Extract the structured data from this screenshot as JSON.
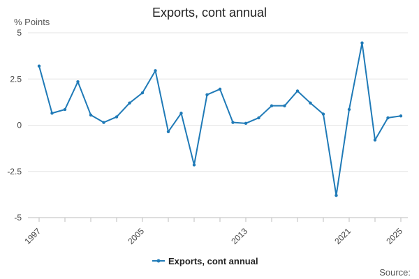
{
  "chart_data": {
    "type": "line",
    "title": "Exports, cont annual",
    "ylabel": "% Points",
    "xlabel": "",
    "ylim": [
      -5,
      5
    ],
    "y_ticks": [
      5,
      2.5,
      0,
      -2.5,
      -5
    ],
    "y_tick_labels": [
      "5",
      "2.5",
      "0",
      "-2.5",
      "-5"
    ],
    "x_tick_labels": [
      "1997",
      "2005",
      "2013",
      "2021",
      "2025"
    ],
    "x_range": [
      1997,
      2025
    ],
    "grid": "horizontal",
    "legend_position": "bottom-center",
    "series": [
      {
        "name": "Exports, cont annual",
        "color": "#1f7ab7",
        "x": [
          1997,
          1998,
          1999,
          2000,
          2001,
          2002,
          2003,
          2004,
          2005,
          2006,
          2007,
          2008,
          2009,
          2010,
          2011,
          2012,
          2013,
          2014,
          2015,
          2016,
          2017,
          2018,
          2019,
          2020,
          2021,
          2022,
          2023,
          2024,
          2025
        ],
        "values": [
          3.2,
          0.65,
          0.85,
          2.35,
          0.55,
          0.15,
          0.45,
          1.2,
          1.75,
          2.95,
          -0.35,
          0.65,
          -2.15,
          1.65,
          1.95,
          0.15,
          0.1,
          0.4,
          1.05,
          1.05,
          1.85,
          1.2,
          0.6,
          -3.8,
          0.85,
          4.45,
          -0.8,
          0.4,
          0.5
        ]
      }
    ]
  },
  "source_label": "Source:"
}
